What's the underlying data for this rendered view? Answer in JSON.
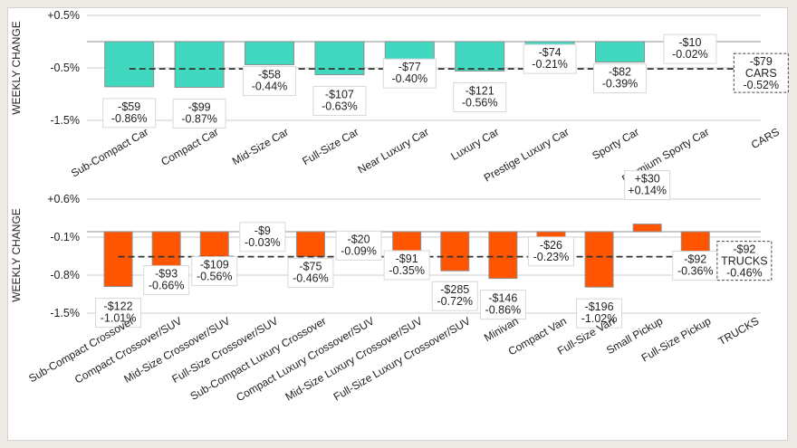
{
  "chart_data": [
    {
      "type": "bar",
      "id": "cars",
      "ylabel": "WEEKLY CHANGE",
      "ylim": [
        -1.5,
        0.5
      ],
      "yticks": [
        0.5,
        -0.5,
        -1.5
      ],
      "ytick_labels": [
        "+0.5%",
        "-0.5%",
        "-1.5%"
      ],
      "baseline": 0,
      "average_line": -0.52,
      "bar_color": "#40d9c0",
      "categories": [
        "Sub-Compact Car",
        "Compact Car",
        "Mid-Size Car",
        "Full-Size Car",
        "Near Luxury Car",
        "Luxury Car",
        "Prestige Luxury Car",
        "Sporty Car",
        "Premium Sporty Car",
        "CARS"
      ],
      "values_pct": [
        -0.86,
        -0.87,
        -0.44,
        -0.63,
        -0.4,
        -0.56,
        -0.21,
        -0.39,
        -0.02
      ],
      "values_usd": [
        -59,
        -99,
        -58,
        -107,
        -77,
        -121,
        -74,
        -82,
        -10
      ],
      "data_labels": [
        [
          "-$59",
          "-0.86%"
        ],
        [
          "-$99",
          "-0.87%"
        ],
        [
          "-$58",
          "-0.44%"
        ],
        [
          "-$107",
          "-0.63%"
        ],
        [
          "-$77",
          "-0.40%"
        ],
        [
          "-$121",
          "-0.56%"
        ],
        [
          "-$74",
          "-0.21%"
        ],
        [
          "-$82",
          "-0.39%"
        ],
        [
          "-$10",
          "-0.02%"
        ]
      ],
      "summary": {
        "category": "CARS",
        "usd": -79,
        "pct": -0.52,
        "lines": [
          "-$79",
          "CARS",
          "-0.52%"
        ]
      }
    },
    {
      "type": "bar",
      "id": "trucks",
      "ylabel": "WEEKLY CHANGE",
      "ylim": [
        -1.5,
        0.6
      ],
      "yticks": [
        0.6,
        -0.1,
        -0.8,
        -1.5
      ],
      "ytick_labels": [
        "+0.6%",
        "-0.1%",
        "-0.8%",
        "-1.5%"
      ],
      "baseline": 0,
      "average_line": -0.46,
      "bar_color": "#ff5500",
      "categories": [
        "Sub-Compact Crossover",
        "Compact Crossover/SUV",
        "Mid-Size Crossover/SUV",
        "Full-Size Crossover/SUV",
        "Sub-Compact Luxury Crossover",
        "Compact Luxury Crossover/SUV",
        "Mid-Size Luxury Crossover/SUV",
        "Full-Size Luxury Crossover/SUV",
        "Minivan",
        "Compact Van",
        "Full-Size Van",
        "Small Pickup",
        "Full-Size Pickup",
        "TRUCKS"
      ],
      "values_pct": [
        -1.01,
        -0.66,
        -0.56,
        -0.03,
        -0.46,
        -0.09,
        -0.35,
        -0.72,
        -0.86,
        -0.23,
        -1.02,
        0.14,
        -0.36
      ],
      "values_usd": [
        -122,
        -93,
        -109,
        -9,
        -75,
        -20,
        -91,
        -285,
        -146,
        -26,
        -196,
        30,
        -92
      ],
      "data_labels": [
        [
          "-$122",
          "-1.01%"
        ],
        [
          "-$93",
          "-0.66%"
        ],
        [
          "-$109",
          "-0.56%"
        ],
        [
          "-$9",
          "-0.03%"
        ],
        [
          "-$75",
          "-0.46%"
        ],
        [
          "-$20",
          "-0.09%"
        ],
        [
          "-$91",
          "-0.35%"
        ],
        [
          "-$285",
          "-0.72%"
        ],
        [
          "-$146",
          "-0.86%"
        ],
        [
          "-$26",
          "-0.23%"
        ],
        [
          "-$196",
          "-1.02%"
        ],
        [
          "+$30",
          "+0.14%"
        ],
        [
          "-$92",
          "-0.36%"
        ]
      ],
      "summary": {
        "category": "TRUCKS",
        "usd": -92,
        "pct": -0.46,
        "lines": [
          "-$92",
          "TRUCKS",
          "-0.46%"
        ]
      }
    }
  ]
}
